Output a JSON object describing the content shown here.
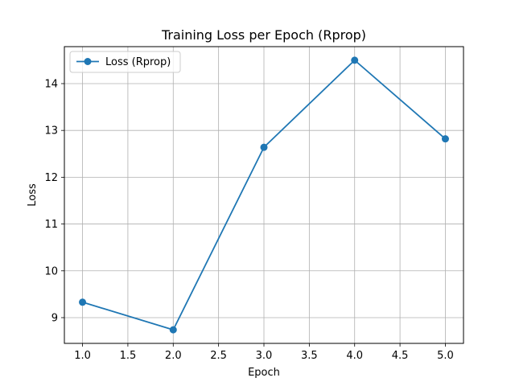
{
  "chart_data": {
    "type": "line",
    "title": "Training Loss per Epoch (Rprop)",
    "xlabel": "Epoch",
    "ylabel": "Loss",
    "x": [
      1,
      2,
      3,
      4,
      5
    ],
    "series": [
      {
        "name": "Loss (Rprop)",
        "values": [
          9.33,
          8.74,
          12.64,
          14.5,
          12.82
        ],
        "color": "#1f77b4",
        "marker": "circle"
      }
    ],
    "xlim": [
      0.8,
      5.2
    ],
    "ylim": [
      8.45,
      14.79
    ],
    "xticks": [
      "1.0",
      "1.5",
      "2.0",
      "2.5",
      "3.0",
      "3.5",
      "4.0",
      "4.5",
      "5.0"
    ],
    "yticks": [
      "9",
      "10",
      "11",
      "12",
      "13",
      "14"
    ],
    "grid": true,
    "legend_position": "upper-left"
  }
}
